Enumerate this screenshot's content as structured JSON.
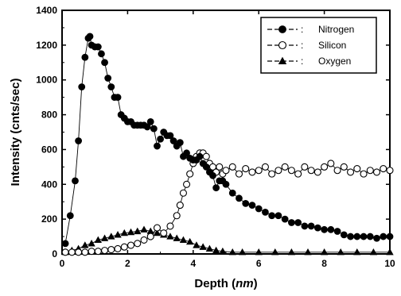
{
  "chart_data": {
    "type": "scatter",
    "title": "",
    "xlabel_main": "Depth",
    "xlabel_unit": "nm",
    "ylabel": "Intensity (cnts/sec)",
    "xlim": [
      0,
      10
    ],
    "ylim": [
      0,
      1400
    ],
    "xticks": [
      0,
      2,
      4,
      6,
      8,
      10
    ],
    "yticks": [
      0,
      200,
      400,
      600,
      800,
      1000,
      1200,
      1400
    ],
    "grid": false,
    "legend_position": "top-right",
    "legend_separator": ":",
    "series": [
      {
        "name": "Nitrogen",
        "marker": "filled-circle",
        "line": true,
        "x": [
          0.1,
          0.25,
          0.4,
          0.5,
          0.6,
          0.7,
          0.8,
          0.85,
          0.9,
          1.0,
          1.1,
          1.2,
          1.3,
          1.4,
          1.5,
          1.6,
          1.7,
          1.8,
          1.9,
          2.0,
          2.1,
          2.2,
          2.3,
          2.4,
          2.5,
          2.6,
          2.7,
          2.8,
          2.9,
          3.0,
          3.1,
          3.2,
          3.3,
          3.4,
          3.5,
          3.6,
          3.7,
          3.8,
          3.9,
          4.0,
          4.1,
          4.2,
          4.3,
          4.4,
          4.5,
          4.6,
          4.7,
          4.8,
          4.9,
          5.0,
          5.2,
          5.4,
          5.6,
          5.8,
          6.0,
          6.2,
          6.4,
          6.6,
          6.8,
          7.0,
          7.2,
          7.4,
          7.6,
          7.8,
          8.0,
          8.2,
          8.4,
          8.6,
          8.8,
          9.0,
          9.2,
          9.4,
          9.6,
          9.8,
          10.0
        ],
        "y": [
          60,
          220,
          420,
          650,
          960,
          1130,
          1240,
          1250,
          1200,
          1190,
          1190,
          1150,
          1100,
          1010,
          960,
          900,
          900,
          800,
          780,
          760,
          760,
          740,
          740,
          740,
          740,
          730,
          760,
          720,
          620,
          660,
          700,
          680,
          680,
          650,
          620,
          640,
          560,
          580,
          550,
          540,
          540,
          560,
          520,
          500,
          470,
          450,
          380,
          420,
          420,
          400,
          350,
          320,
          290,
          280,
          260,
          240,
          220,
          220,
          200,
          180,
          180,
          160,
          160,
          150,
          140,
          140,
          130,
          110,
          100,
          100,
          100,
          100,
          90,
          100,
          100
        ]
      },
      {
        "name": "Silicon",
        "marker": "open-circle",
        "line": true,
        "x": [
          0.1,
          0.3,
          0.5,
          0.7,
          0.9,
          1.1,
          1.3,
          1.5,
          1.7,
          1.9,
          2.1,
          2.3,
          2.5,
          2.7,
          2.9,
          3.1,
          3.3,
          3.5,
          3.6,
          3.7,
          3.8,
          3.9,
          4.0,
          4.1,
          4.2,
          4.3,
          4.4,
          4.5,
          4.6,
          4.7,
          4.8,
          4.9,
          5.0,
          5.2,
          5.4,
          5.6,
          5.8,
          6.0,
          6.2,
          6.4,
          6.6,
          6.8,
          7.0,
          7.2,
          7.4,
          7.6,
          7.8,
          8.0,
          8.2,
          8.4,
          8.6,
          8.8,
          9.0,
          9.2,
          9.4,
          9.6,
          9.8,
          10.0
        ],
        "y": [
          10,
          10,
          10,
          10,
          15,
          15,
          20,
          25,
          30,
          40,
          50,
          60,
          80,
          100,
          150,
          120,
          160,
          220,
          280,
          350,
          400,
          460,
          520,
          560,
          580,
          580,
          560,
          520,
          500,
          470,
          500,
          460,
          480,
          500,
          460,
          490,
          470,
          480,
          500,
          460,
          480,
          500,
          480,
          460,
          500,
          480,
          470,
          500,
          520,
          480,
          500,
          470,
          490,
          460,
          480,
          470,
          490,
          480
        ]
      },
      {
        "name": "Oxygen",
        "marker": "filled-triangle",
        "line": true,
        "x": [
          0.1,
          0.3,
          0.5,
          0.7,
          0.9,
          1.1,
          1.3,
          1.5,
          1.7,
          1.9,
          2.1,
          2.3,
          2.5,
          2.7,
          2.9,
          3.1,
          3.3,
          3.5,
          3.7,
          3.9,
          4.1,
          4.3,
          4.5,
          4.7,
          4.9,
          5.2,
          5.5,
          6.0,
          6.5,
          7.0,
          7.5,
          8.0,
          8.5,
          9.0,
          9.5,
          10.0
        ],
        "y": [
          10,
          20,
          30,
          50,
          60,
          80,
          90,
          100,
          110,
          120,
          125,
          130,
          140,
          130,
          120,
          110,
          100,
          90,
          80,
          70,
          50,
          40,
          30,
          20,
          15,
          10,
          10,
          10,
          10,
          10,
          10,
          10,
          10,
          10,
          10,
          10
        ]
      }
    ]
  }
}
